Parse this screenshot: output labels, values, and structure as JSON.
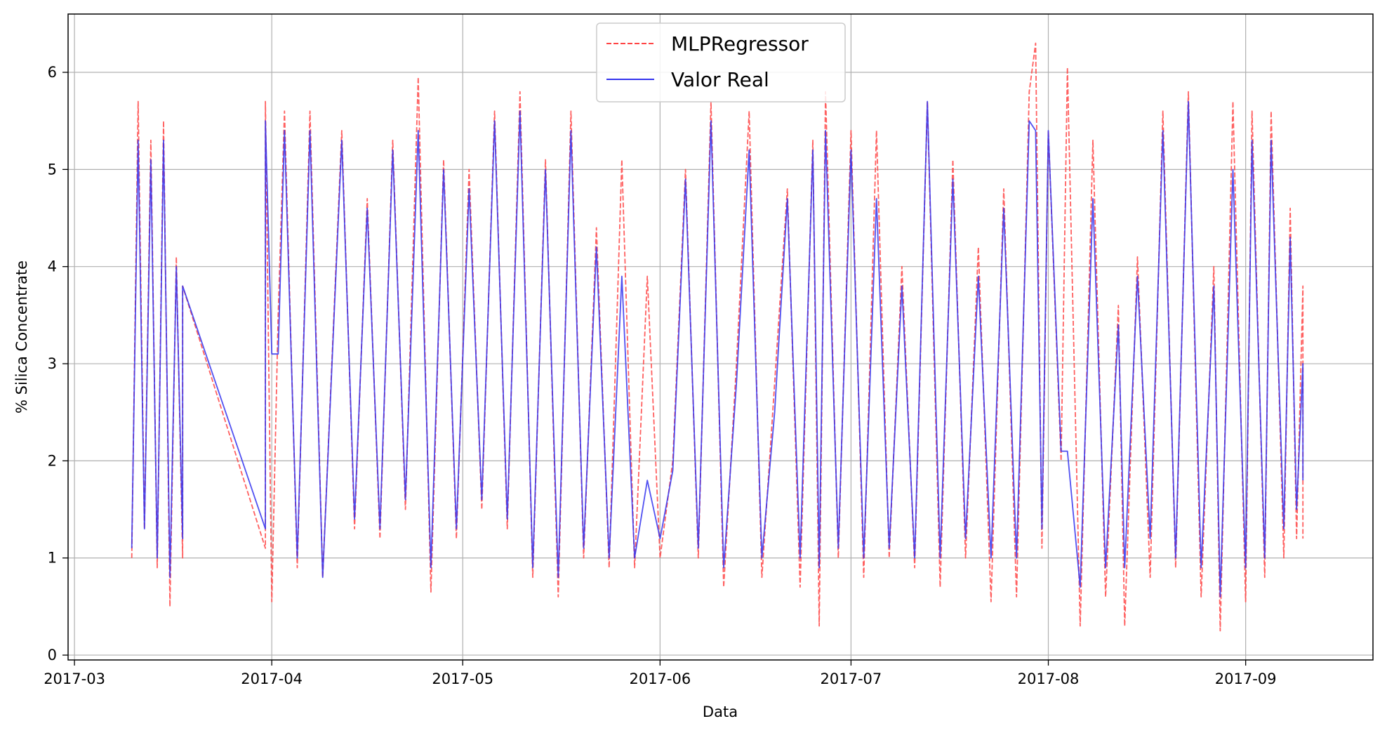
{
  "chart_data": {
    "type": "line",
    "title": "",
    "xlabel": "Data",
    "ylabel": "% Silica Concentrate",
    "x_tick_labels": [
      "2017-03",
      "2017-04",
      "2017-05",
      "2017-06",
      "2017-07",
      "2017-08",
      "2017-09"
    ],
    "y_tick_labels": [
      "0",
      "1",
      "2",
      "3",
      "4",
      "5",
      "6"
    ],
    "xlim": [
      "2017-02-28",
      "2017-09-21"
    ],
    "ylim": [
      -0.05,
      6.6
    ],
    "grid": true,
    "legend_position": "top-center",
    "legend": [
      {
        "name": "MLPRegressor",
        "color": "#ff4444",
        "style": "dashed"
      },
      {
        "name": "Valor Real",
        "color": "#3333ee",
        "style": "solid"
      }
    ],
    "series": [
      {
        "name": "MLPRegressor",
        "color": "#ff4444",
        "style": "dashed",
        "points": [
          [
            "2017-03-10",
            1.0
          ],
          [
            "2017-03-11",
            5.7
          ],
          [
            "2017-03-12",
            1.3
          ],
          [
            "2017-03-13",
            5.3
          ],
          [
            "2017-03-14",
            0.9
          ],
          [
            "2017-03-15",
            5.5
          ],
          [
            "2017-03-16",
            0.5
          ],
          [
            "2017-03-17",
            4.1
          ],
          [
            "2017-03-18",
            1.0
          ],
          [
            "2017-03-18",
            3.8
          ],
          [
            "2017-03-31",
            1.1
          ],
          [
            "2017-03-31",
            5.7
          ],
          [
            "2017-04-01",
            0.55
          ],
          [
            "2017-04-02",
            3.5
          ],
          [
            "2017-04-03",
            5.6
          ],
          [
            "2017-04-05",
            0.9
          ],
          [
            "2017-04-07",
            5.6
          ],
          [
            "2017-04-09",
            0.8
          ],
          [
            "2017-04-12",
            5.4
          ],
          [
            "2017-04-14",
            1.3
          ],
          [
            "2017-04-16",
            4.7
          ],
          [
            "2017-04-18",
            1.2
          ],
          [
            "2017-04-20",
            5.3
          ],
          [
            "2017-04-22",
            1.5
          ],
          [
            "2017-04-24",
            5.95
          ],
          [
            "2017-04-26",
            0.65
          ],
          [
            "2017-04-28",
            5.1
          ],
          [
            "2017-04-30",
            1.2
          ],
          [
            "2017-05-02",
            5.0
          ],
          [
            "2017-05-04",
            1.5
          ],
          [
            "2017-05-06",
            5.6
          ],
          [
            "2017-05-08",
            1.3
          ],
          [
            "2017-05-10",
            5.8
          ],
          [
            "2017-05-12",
            0.8
          ],
          [
            "2017-05-14",
            5.1
          ],
          [
            "2017-05-16",
            0.6
          ],
          [
            "2017-05-18",
            5.6
          ],
          [
            "2017-05-20",
            1.0
          ],
          [
            "2017-05-22",
            4.4
          ],
          [
            "2017-05-24",
            0.9
          ],
          [
            "2017-05-26",
            5.1
          ],
          [
            "2017-05-28",
            0.9
          ],
          [
            "2017-05-30",
            3.9
          ],
          [
            "2017-06-01",
            1.0
          ],
          [
            "2017-06-03",
            2.0
          ],
          [
            "2017-06-05",
            5.0
          ],
          [
            "2017-06-07",
            1.0
          ],
          [
            "2017-06-09",
            5.7
          ],
          [
            "2017-06-11",
            0.7
          ],
          [
            "2017-06-13",
            3.0
          ],
          [
            "2017-06-15",
            5.6
          ],
          [
            "2017-06-17",
            0.8
          ],
          [
            "2017-06-19",
            2.8
          ],
          [
            "2017-06-21",
            4.8
          ],
          [
            "2017-06-23",
            0.7
          ],
          [
            "2017-06-25",
            5.3
          ],
          [
            "2017-06-26",
            0.3
          ],
          [
            "2017-06-27",
            5.8
          ],
          [
            "2017-06-29",
            1.0
          ],
          [
            "2017-07-01",
            5.4
          ],
          [
            "2017-07-03",
            0.8
          ],
          [
            "2017-07-05",
            5.4
          ],
          [
            "2017-07-07",
            1.0
          ],
          [
            "2017-07-09",
            4.0
          ],
          [
            "2017-07-11",
            0.9
          ],
          [
            "2017-07-13",
            5.7
          ],
          [
            "2017-07-15",
            0.7
          ],
          [
            "2017-07-17",
            5.1
          ],
          [
            "2017-07-19",
            1.0
          ],
          [
            "2017-07-21",
            4.2
          ],
          [
            "2017-07-23",
            0.55
          ],
          [
            "2017-07-25",
            4.8
          ],
          [
            "2017-07-27",
            0.6
          ],
          [
            "2017-07-29",
            5.8
          ],
          [
            "2017-07-30",
            6.3
          ],
          [
            "2017-07-31",
            1.1
          ],
          [
            "2017-08-01",
            5.4
          ],
          [
            "2017-08-03",
            2.0
          ],
          [
            "2017-08-04",
            6.05
          ],
          [
            "2017-08-06",
            0.3
          ],
          [
            "2017-08-08",
            5.3
          ],
          [
            "2017-08-10",
            0.6
          ],
          [
            "2017-08-12",
            3.6
          ],
          [
            "2017-08-13",
            0.3
          ],
          [
            "2017-08-15",
            4.1
          ],
          [
            "2017-08-17",
            0.8
          ],
          [
            "2017-08-19",
            5.6
          ],
          [
            "2017-08-21",
            0.9
          ],
          [
            "2017-08-23",
            5.8
          ],
          [
            "2017-08-25",
            0.6
          ],
          [
            "2017-08-27",
            4.0
          ],
          [
            "2017-08-28",
            0.25
          ],
          [
            "2017-08-30",
            5.7
          ],
          [
            "2017-09-01",
            0.55
          ],
          [
            "2017-09-02",
            5.6
          ],
          [
            "2017-09-04",
            0.8
          ],
          [
            "2017-09-05",
            5.6
          ],
          [
            "2017-09-07",
            1.0
          ],
          [
            "2017-09-08",
            4.6
          ],
          [
            "2017-09-09",
            1.2
          ],
          [
            "2017-09-10",
            3.8
          ],
          [
            "2017-09-10",
            1.2
          ]
        ]
      },
      {
        "name": "Valor Real",
        "color": "#3333ee",
        "style": "solid",
        "points": [
          [
            "2017-03-10",
            1.1
          ],
          [
            "2017-03-11",
            5.3
          ],
          [
            "2017-03-12",
            1.3
          ],
          [
            "2017-03-13",
            5.1
          ],
          [
            "2017-03-14",
            1.0
          ],
          [
            "2017-03-15",
            5.3
          ],
          [
            "2017-03-16",
            0.8
          ],
          [
            "2017-03-17",
            4.0
          ],
          [
            "2017-03-18",
            1.2
          ],
          [
            "2017-03-18",
            3.8
          ],
          [
            "2017-03-31",
            1.3
          ],
          [
            "2017-03-31",
            5.5
          ],
          [
            "2017-04-01",
            3.1
          ],
          [
            "2017-04-02",
            3.1
          ],
          [
            "2017-04-03",
            5.4
          ],
          [
            "2017-04-05",
            1.0
          ],
          [
            "2017-04-07",
            5.4
          ],
          [
            "2017-04-09",
            0.8
          ],
          [
            "2017-04-12",
            5.3
          ],
          [
            "2017-04-14",
            1.4
          ],
          [
            "2017-04-16",
            4.6
          ],
          [
            "2017-04-18",
            1.3
          ],
          [
            "2017-04-20",
            5.2
          ],
          [
            "2017-04-22",
            1.6
          ],
          [
            "2017-04-24",
            5.4
          ],
          [
            "2017-04-26",
            0.9
          ],
          [
            "2017-04-28",
            5.0
          ],
          [
            "2017-04-30",
            1.3
          ],
          [
            "2017-05-02",
            4.8
          ],
          [
            "2017-05-04",
            1.6
          ],
          [
            "2017-05-06",
            5.5
          ],
          [
            "2017-05-08",
            1.4
          ],
          [
            "2017-05-10",
            5.6
          ],
          [
            "2017-05-12",
            0.9
          ],
          [
            "2017-05-14",
            5.0
          ],
          [
            "2017-05-16",
            0.8
          ],
          [
            "2017-05-18",
            5.4
          ],
          [
            "2017-05-20",
            1.1
          ],
          [
            "2017-05-22",
            4.2
          ],
          [
            "2017-05-24",
            1.0
          ],
          [
            "2017-05-26",
            3.9
          ],
          [
            "2017-05-28",
            1.0
          ],
          [
            "2017-05-30",
            1.8
          ],
          [
            "2017-06-01",
            1.2
          ],
          [
            "2017-06-03",
            1.9
          ],
          [
            "2017-06-05",
            4.9
          ],
          [
            "2017-06-07",
            1.1
          ],
          [
            "2017-06-09",
            5.5
          ],
          [
            "2017-06-11",
            0.9
          ],
          [
            "2017-06-13",
            2.8
          ],
          [
            "2017-06-15",
            5.2
          ],
          [
            "2017-06-17",
            1.0
          ],
          [
            "2017-06-19",
            2.5
          ],
          [
            "2017-06-21",
            4.7
          ],
          [
            "2017-06-23",
            1.0
          ],
          [
            "2017-06-25",
            5.2
          ],
          [
            "2017-06-26",
            0.9
          ],
          [
            "2017-06-27",
            5.4
          ],
          [
            "2017-06-29",
            1.1
          ],
          [
            "2017-07-01",
            5.2
          ],
          [
            "2017-07-03",
            1.0
          ],
          [
            "2017-07-05",
            4.7
          ],
          [
            "2017-07-07",
            1.1
          ],
          [
            "2017-07-09",
            3.8
          ],
          [
            "2017-07-11",
            1.0
          ],
          [
            "2017-07-13",
            5.7
          ],
          [
            "2017-07-15",
            1.0
          ],
          [
            "2017-07-17",
            4.9
          ],
          [
            "2017-07-19",
            1.2
          ],
          [
            "2017-07-21",
            3.9
          ],
          [
            "2017-07-23",
            1.0
          ],
          [
            "2017-07-25",
            4.6
          ],
          [
            "2017-07-27",
            1.0
          ],
          [
            "2017-07-29",
            5.5
          ],
          [
            "2017-07-30",
            5.4
          ],
          [
            "2017-07-31",
            1.3
          ],
          [
            "2017-08-01",
            5.4
          ],
          [
            "2017-08-03",
            2.1
          ],
          [
            "2017-08-04",
            2.1
          ],
          [
            "2017-08-06",
            0.7
          ],
          [
            "2017-08-08",
            4.7
          ],
          [
            "2017-08-10",
            0.9
          ],
          [
            "2017-08-12",
            3.4
          ],
          [
            "2017-08-13",
            0.9
          ],
          [
            "2017-08-15",
            3.9
          ],
          [
            "2017-08-17",
            1.2
          ],
          [
            "2017-08-19",
            5.4
          ],
          [
            "2017-08-21",
            1.0
          ],
          [
            "2017-08-23",
            5.7
          ],
          [
            "2017-08-25",
            0.9
          ],
          [
            "2017-08-27",
            3.8
          ],
          [
            "2017-08-28",
            0.6
          ],
          [
            "2017-08-30",
            5.0
          ],
          [
            "2017-09-01",
            0.9
          ],
          [
            "2017-09-02",
            5.3
          ],
          [
            "2017-09-04",
            1.0
          ],
          [
            "2017-09-05",
            5.3
          ],
          [
            "2017-09-07",
            1.3
          ],
          [
            "2017-09-08",
            4.3
          ],
          [
            "2017-09-09",
            1.5
          ],
          [
            "2017-09-10",
            3.0
          ],
          [
            "2017-09-10",
            1.8
          ]
        ]
      }
    ]
  }
}
